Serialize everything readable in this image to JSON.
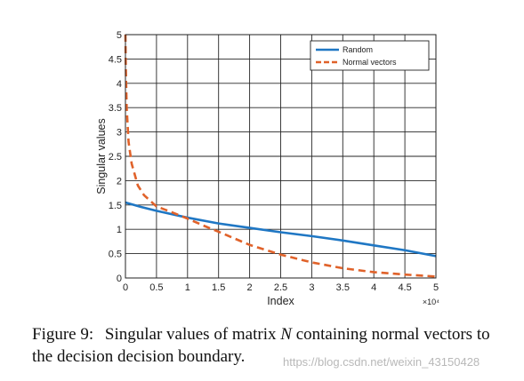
{
  "chart_data": {
    "type": "line",
    "xlabel": "Index",
    "ylabel": "Singular values",
    "x_multiplier_label": "×10⁴",
    "xlim": [
      0,
      5
    ],
    "ylim": [
      0,
      5
    ],
    "x_ticks": [
      "0",
      "0.5",
      "1",
      "1.5",
      "2",
      "2.5",
      "3",
      "3.5",
      "4",
      "4.5",
      "5"
    ],
    "y_ticks": [
      "0",
      "0.5",
      "1",
      "1.5",
      "2",
      "2.5",
      "3",
      "3.5",
      "4",
      "4.5",
      "5"
    ],
    "grid": true,
    "legend_position": "top-right",
    "series": [
      {
        "name": "Random",
        "color": "#1f77c4",
        "style": "solid",
        "x": [
          0,
          0.25,
          0.5,
          1,
          1.5,
          2,
          2.5,
          3,
          3.5,
          4,
          4.5,
          5
        ],
        "y": [
          1.55,
          1.46,
          1.38,
          1.24,
          1.12,
          1.03,
          0.94,
          0.86,
          0.77,
          0.67,
          0.57,
          0.45
        ]
      },
      {
        "name": "Normal vectors",
        "color": "#e0622a",
        "style": "dashed",
        "x": [
          0,
          0.005,
          0.02,
          0.05,
          0.1,
          0.2,
          0.3,
          0.5,
          0.75,
          1,
          1.25,
          1.5,
          2,
          2.5,
          3,
          3.5,
          4,
          4.5,
          5
        ],
        "y": [
          5.0,
          4.4,
          3.5,
          2.8,
          2.35,
          1.9,
          1.7,
          1.47,
          1.35,
          1.22,
          1.08,
          0.95,
          0.68,
          0.48,
          0.32,
          0.2,
          0.12,
          0.07,
          0.03
        ]
      }
    ]
  },
  "caption": {
    "label": "Figure 9:",
    "text_before": "Singular values of matrix",
    "math_var": "N",
    "text_after": "containing normal vectors to the decision decision boundary."
  },
  "watermark": "https://blog.csdn.net/weixin_43150428"
}
